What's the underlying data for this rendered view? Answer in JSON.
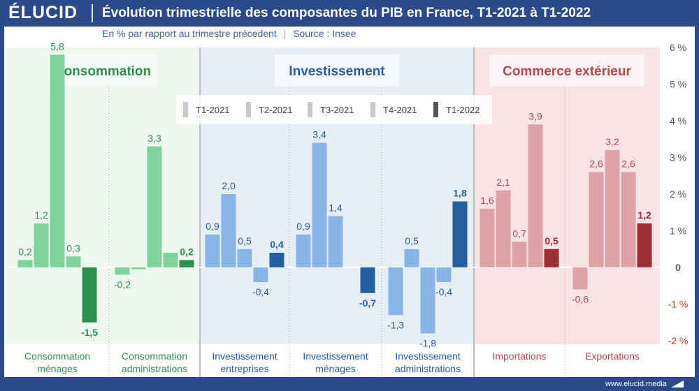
{
  "header": {
    "logo": "ÉLUCID",
    "title": "Évolution trimestrielle des composantes du PIB en France, T1-2021 à T1-2022",
    "subtitle_unit": "En % par rapport au trimestre précedent",
    "subtitle_separator": "|",
    "subtitle_source": "Source : Insee"
  },
  "footer": {
    "url": "www.elucid.media"
  },
  "chart_data": {
    "type": "bar",
    "title": "Évolution trimestrielle des composantes du PIB en France, T1-2021 à T1-2022",
    "ylabel": "",
    "ylim": [
      -2,
      6
    ],
    "y_ticks": [
      6,
      5,
      4,
      3,
      2,
      1,
      0,
      -1,
      -2
    ],
    "y_tick_labels": [
      "6 %",
      "5 %",
      "4 %",
      "3 %",
      "2 %",
      "1 %",
      "0",
      "-1 %",
      "-2 %"
    ],
    "series_names": [
      "T1-2021",
      "T2-2021",
      "T3-2021",
      "T4-2021",
      "T1-2022"
    ],
    "groups": [
      {
        "title": "Consommation",
        "color_light": "#7fd39b",
        "color_dark": "#2b8f4e",
        "text_color": "#2f8f4a",
        "bg_color": "#eef8ef",
        "categories": [
          {
            "label_lines": [
              "Consommation",
              "ménages"
            ],
            "values": [
              0.2,
              1.2,
              5.8,
              0.3,
              -1.5
            ],
            "labels": [
              "0,2",
              "1,2",
              "5,8",
              "0,3",
              "-1,5"
            ]
          },
          {
            "label_lines": [
              "Consommation",
              "administrations"
            ],
            "values": [
              -0.2,
              -0.05,
              3.3,
              0.4,
              0.2
            ],
            "labels": [
              "-0,2",
              "",
              "3,3",
              "",
              "0,2"
            ]
          }
        ]
      },
      {
        "title": "Investissement",
        "color_light": "#8ab4e6",
        "color_dark": "#245f9e",
        "text_color": "#2b5d9c",
        "bg_color": "#e6eef8",
        "categories": [
          {
            "label_lines": [
              "Investissement",
              "entreprises"
            ],
            "values": [
              0.9,
              2.0,
              0.5,
              -0.4,
              0.4
            ],
            "labels": [
              "0,9",
              "2,0",
              "0,5",
              "-0,4",
              "0,4"
            ]
          },
          {
            "label_lines": [
              "Investissement",
              "ménages"
            ],
            "values": [
              0.9,
              3.4,
              1.4,
              0.0,
              -0.7
            ],
            "labels": [
              "0,9",
              "3,4",
              "1,4",
              "",
              "-0,7"
            ]
          },
          {
            "label_lines": [
              "Investissement",
              "administrations"
            ],
            "values": [
              -1.3,
              0.5,
              -1.8,
              -0.4,
              1.8
            ],
            "labels": [
              "-1,3",
              "0,5",
              "-1,8",
              "-0,4",
              "1,8"
            ]
          }
        ]
      },
      {
        "title": "Commerce extérieur",
        "color_light": "#dfa2a4",
        "color_dark": "#9c2f34",
        "text_color": "#b8474b",
        "bg_color": "#f8e4e4",
        "categories": [
          {
            "label_lines": [
              "Importations"
            ],
            "values": [
              1.6,
              2.1,
              0.7,
              3.9,
              0.5
            ],
            "labels": [
              "1,6",
              "2,1",
              "0,7",
              "3,9",
              "0,5"
            ]
          },
          {
            "label_lines": [
              "Exportations"
            ],
            "values": [
              -0.6,
              2.6,
              3.2,
              2.6,
              1.2
            ],
            "labels": [
              "-0,6",
              "2,6",
              "3,2",
              "2,6",
              "1,2"
            ]
          }
        ]
      }
    ],
    "legend": [
      {
        "label": "T1-2021",
        "color": "#c8c8c8"
      },
      {
        "label": "T2-2021",
        "color": "#c8c8c8"
      },
      {
        "label": "T3-2021",
        "color": "#c8c8c8"
      },
      {
        "label": "T4-2021",
        "color": "#c8c8c8"
      },
      {
        "label": "T1-2022",
        "color": "#555555"
      }
    ],
    "axis_color_positive": "#555555",
    "axis_color_negative": "#c0392b"
  }
}
